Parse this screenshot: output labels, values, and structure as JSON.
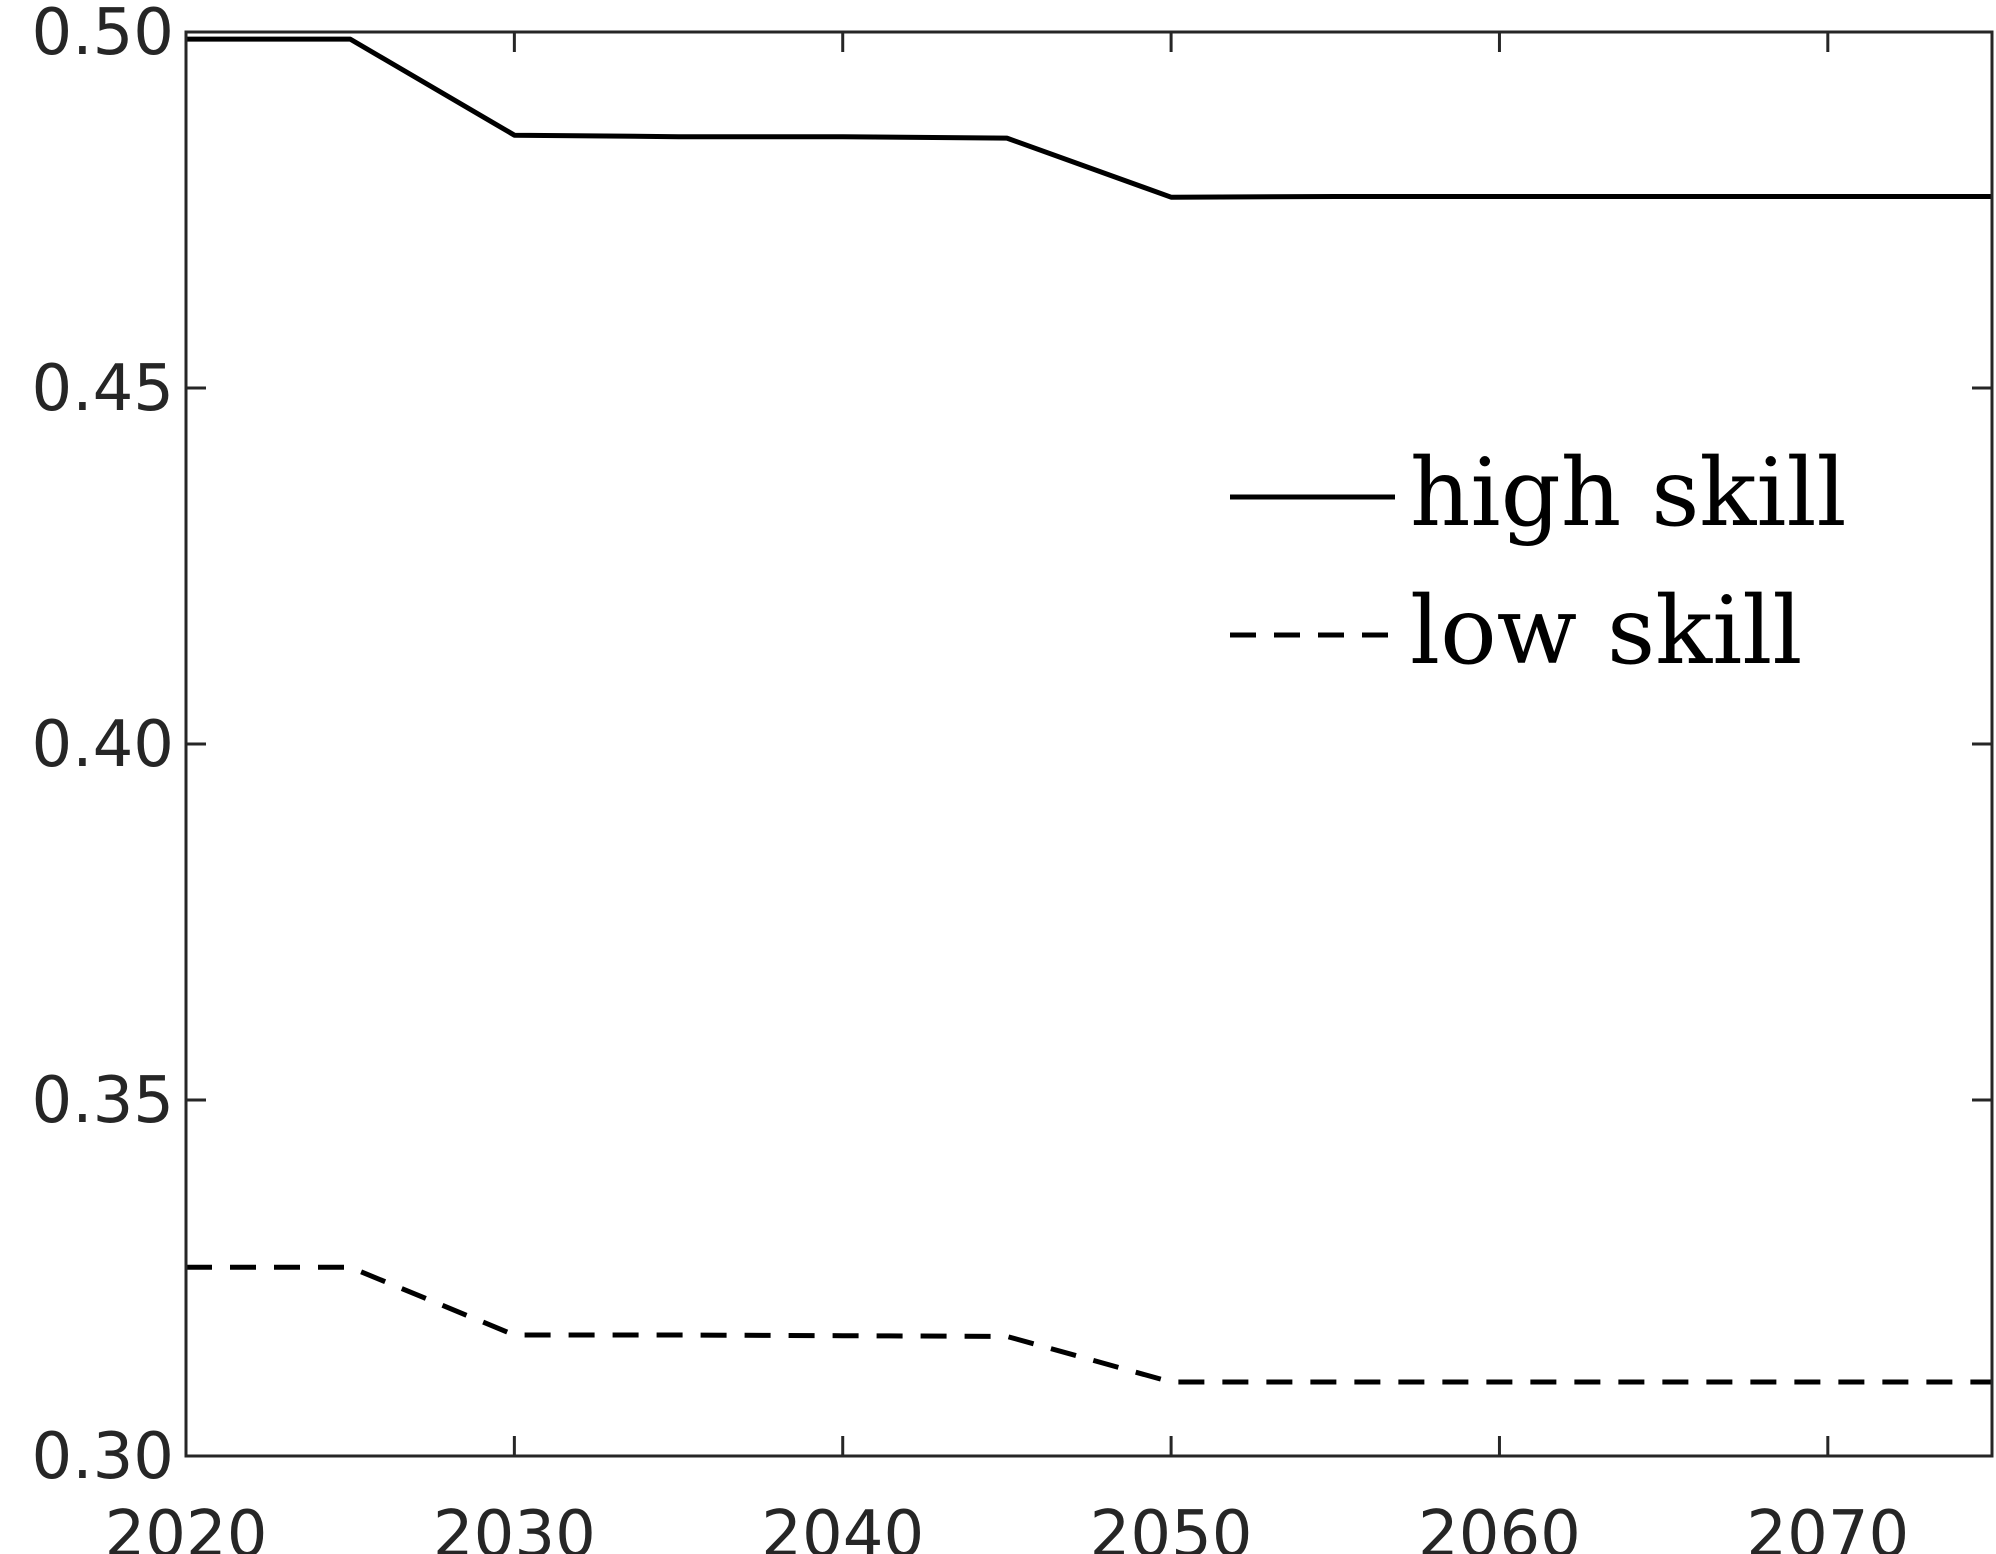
{
  "chart_data": {
    "type": "line",
    "title": "",
    "xlabel": "",
    "ylabel": "",
    "xlim": [
      2020,
      2075
    ],
    "ylim": [
      0.3,
      0.5
    ],
    "x_ticks": [
      2020,
      2030,
      2040,
      2050,
      2060,
      2070
    ],
    "x_tick_labels": [
      "2020",
      "2030",
      "2040",
      "2050",
      "2060",
      "2070"
    ],
    "y_ticks": [
      0.3,
      0.35,
      0.4,
      0.45,
      0.5
    ],
    "y_tick_labels": [
      "0.30",
      "0.35",
      "0.40",
      "0.45",
      "0.50"
    ],
    "grid": false,
    "box": true,
    "legend_position": "upper-right",
    "series": [
      {
        "name": "high skill",
        "line_style": "solid",
        "color": "#000000",
        "x": [
          2020,
          2025,
          2030,
          2035,
          2040,
          2045,
          2050,
          2055,
          2060,
          2065,
          2070,
          2075
        ],
        "y": [
          0.499,
          0.499,
          0.4855,
          0.4853,
          0.4853,
          0.4851,
          0.4768,
          0.4769,
          0.4769,
          0.4769,
          0.4769,
          0.4769
        ]
      },
      {
        "name": "low skill",
        "line_style": "dashed",
        "color": "#000000",
        "x": [
          2020,
          2025,
          2030,
          2035,
          2040,
          2045,
          2050,
          2055,
          2060,
          2065,
          2070,
          2075
        ],
        "y": [
          0.3265,
          0.3265,
          0.317,
          0.317,
          0.3169,
          0.3168,
          0.3104,
          0.3104,
          0.3104,
          0.3104,
          0.3104,
          0.3104
        ]
      }
    ]
  }
}
